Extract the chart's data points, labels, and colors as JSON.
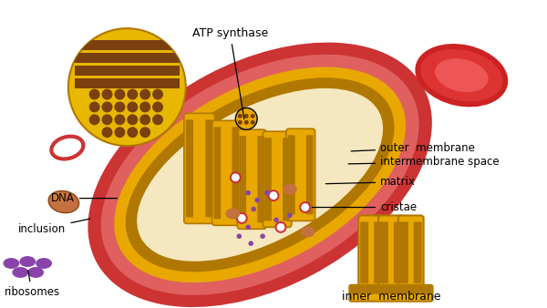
{
  "background_color": "#ffffff",
  "title": "",
  "labels": {
    "atp_synthase": "ATP synthase",
    "outer_membrane": "outer  membrane",
    "intermembrane_space": "intermembrane space",
    "matrix": "matrix",
    "cristae": "cristae",
    "dna": "DNA",
    "inclusion": "inclusion",
    "ribosomes": "ribosomes",
    "inner_membrane": "inner  membrane"
  },
  "colors": {
    "outer_membrane_red": "#cc3333",
    "outer_membrane_pink": "#e06060",
    "inner_membrane_yellow": "#e8a800",
    "inner_membrane_dark": "#b07800",
    "matrix_cream": "#f5e8c0",
    "atp_yellow": "#e8b800",
    "atp_brown": "#7a4010",
    "dna_ring_red": "#cc3333",
    "inclusion_brown": "#c47040",
    "ribosome_purple": "#8844aa",
    "matrix_dot_red": "#cc4444",
    "red_blood_cell_dark": "#cc2222",
    "red_blood_cell_mid": "#dd3333",
    "red_blood_cell_light": "#ee5555",
    "text_color": "#000000",
    "line_color": "#000000"
  }
}
